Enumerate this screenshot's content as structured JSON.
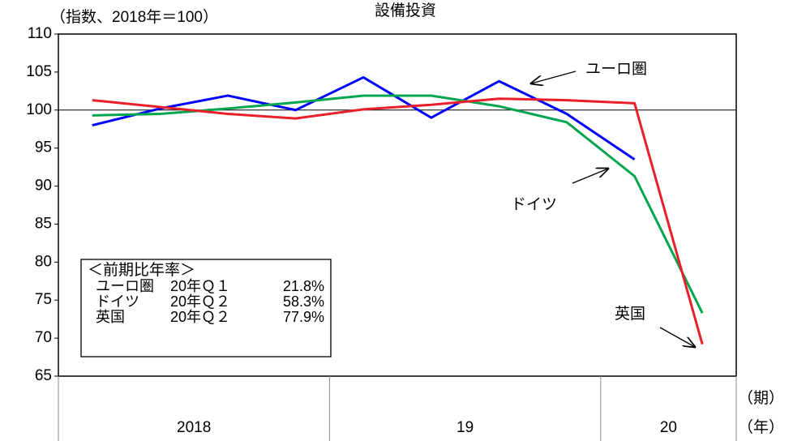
{
  "chart_data": {
    "type": "line",
    "title": "設備投資",
    "y_label": "（指数、2018年＝100）",
    "categories": [
      null,
      null,
      null,
      null,
      null,
      null,
      null,
      null,
      null,
      null
    ],
    "x_groups": [
      {
        "label": "2018",
        "count": 4
      },
      {
        "label": "19",
        "count": 4
      },
      {
        "label": "20",
        "count": 2
      }
    ],
    "x_label_period": "（期）",
    "x_label_year": "（年）",
    "series": [
      {
        "name": "ユーロ圏",
        "color": "#0000ff",
        "values": [
          98.0,
          100.2,
          101.9,
          100.0,
          104.3,
          99.0,
          103.8,
          99.5,
          93.5,
          null
        ]
      },
      {
        "name": "ドイツ",
        "color": "#00a550",
        "values": [
          99.3,
          99.5,
          100.2,
          101.0,
          101.9,
          101.9,
          100.5,
          98.4,
          91.3,
          73.3
        ]
      },
      {
        "name": "英国",
        "color": "#e8202a",
        "values": [
          101.3,
          100.4,
          99.5,
          98.9,
          100.1,
          100.7,
          101.5,
          101.3,
          100.9,
          69.2
        ]
      }
    ],
    "ylim": [
      65,
      110
    ],
    "yticks": [
      65,
      70,
      75,
      80,
      85,
      90,
      95,
      100,
      105,
      110
    ],
    "reference_line": 100,
    "note_box": {
      "title": "＜前期比年率＞",
      "rows": [
        [
          "ユーロ圏",
          "20年Ｑ１",
          "21.8%"
        ],
        [
          "ドイツ",
          "20年Ｑ２",
          "58.3%"
        ],
        [
          "英国",
          "20年Ｑ２",
          "77.9%"
        ]
      ]
    }
  }
}
